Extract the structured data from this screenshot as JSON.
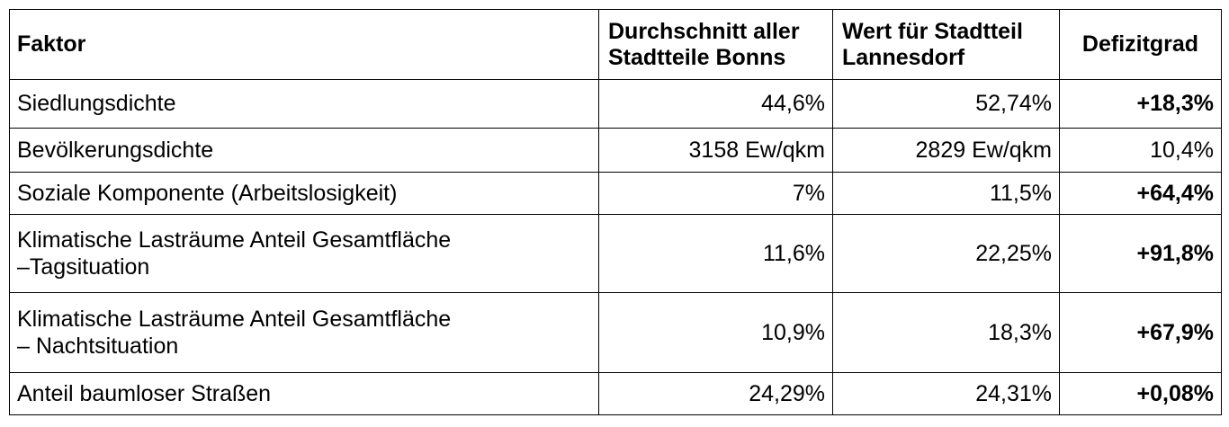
{
  "table": {
    "headers": {
      "factor": "Faktor",
      "average_line1": "Durchschnitt aller",
      "average_line2": "Stadtteile Bonns",
      "value_line1": "Wert für Stadtteil",
      "value_line2": "Lannesdorf",
      "deficit": "Defizitgrad"
    },
    "rows": [
      {
        "factor_line1": "Siedlungsdichte",
        "factor_line2": "",
        "average": "44,6%",
        "value": "52,74%",
        "deficit": "+18,3%",
        "deficit_bold": true
      },
      {
        "factor_line1": "Bevölkerungsdichte",
        "factor_line2": "",
        "average": "3158 Ew/qkm",
        "value": "2829 Ew/qkm",
        "deficit": "10,4%",
        "deficit_bold": false
      },
      {
        "factor_line1": "Soziale Komponente (Arbeitslosigkeit)",
        "factor_line2": "",
        "average": "7%",
        "value": "11,5%",
        "deficit": "+64,4%",
        "deficit_bold": true
      },
      {
        "factor_line1": "Klimatische Lasträume Anteil Gesamtfläche",
        "factor_line2": "–Tagsituation",
        "average": "11,6%",
        "value": "22,25%",
        "deficit": "+91,8%",
        "deficit_bold": true
      },
      {
        "factor_line1": "Klimatische Lasträume Anteil Gesamtfläche",
        "factor_line2": "– Nachtsituation",
        "average": "10,9%",
        "value": "18,3%",
        "deficit": "+67,9%",
        "deficit_bold": true
      },
      {
        "factor_line1": "Anteil baumloser Straßen",
        "factor_line2": "",
        "average": "24,29%",
        "value": "24,31%",
        "deficit": "+0,08%",
        "deficit_bold": true
      }
    ]
  }
}
